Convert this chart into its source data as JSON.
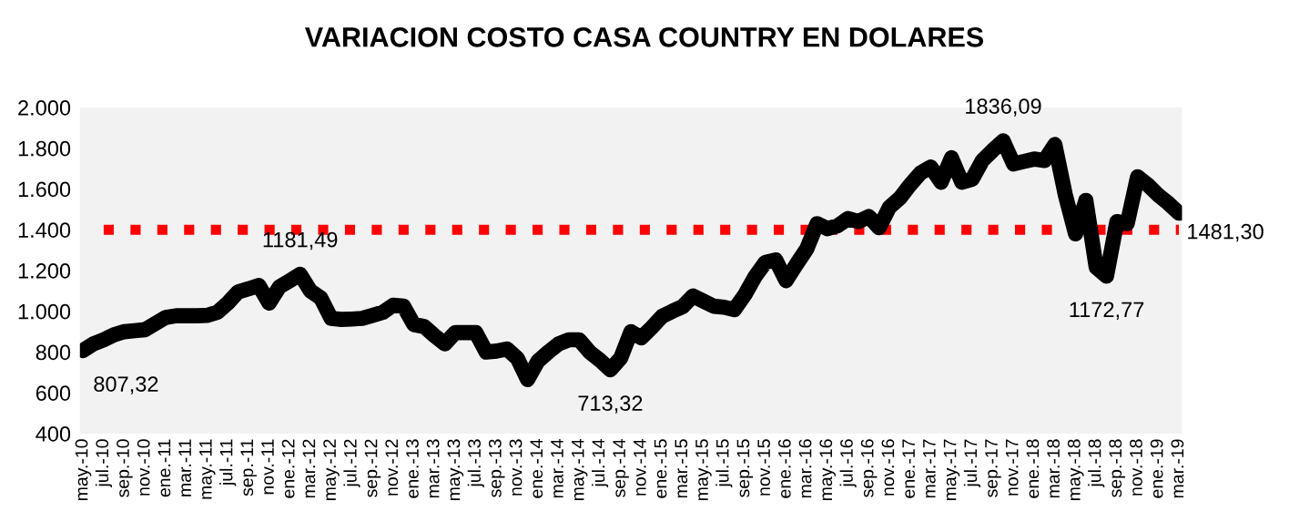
{
  "chart_data": {
    "type": "line",
    "title": "VARIACION COSTO CASA COUNTRY EN DOLARES",
    "categories": [
      "may.-10",
      null,
      "jul.-10",
      null,
      "sep.-10",
      null,
      "nov.-10",
      null,
      "ene.-11",
      null,
      "mar.-11",
      null,
      "may.-11",
      null,
      "jul.-11",
      null,
      "sep.-11",
      null,
      "nov.-11",
      null,
      "ene.-12",
      null,
      "mar.-12",
      null,
      "may.-12",
      null,
      "jul.-12",
      null,
      "sep.-12",
      null,
      "nov.-12",
      null,
      "ene.-13",
      null,
      "mar.-13",
      null,
      "may.-13",
      null,
      "jul.-13",
      null,
      "sep.-13",
      null,
      "nov.-13",
      null,
      "ene.-14",
      null,
      "mar.-14",
      null,
      "may.-14",
      null,
      "jul.-14",
      null,
      "sep.-14",
      null,
      "nov.-14",
      null,
      "ene.-15",
      null,
      "mar.-15",
      null,
      "may.-15",
      null,
      "jul.-15",
      null,
      "sep.-15",
      null,
      "nov.-15",
      null,
      "ene.-16",
      null,
      "mar.-16",
      null,
      "may.-16",
      null,
      "jul.-16",
      null,
      "sep.-16",
      null,
      "nov.-16",
      null,
      "ene.-17",
      null,
      "mar.-17",
      null,
      "may.-17",
      null,
      "jul.-17",
      null,
      "sep.-17",
      null,
      "nov.-17",
      null,
      "ene.-18",
      null,
      "mar.-18",
      null,
      "may.-18",
      null,
      "jul.-18",
      null,
      "sep.-18",
      null,
      "nov.-18",
      null,
      "ene.-19",
      null,
      "mar.-19"
    ],
    "series": [
      {
        "color": "#000000",
        "values": [
          807.32,
          840,
          860,
          885,
          900,
          905,
          910,
          940,
          970,
          978,
          978,
          978,
          980,
          995,
          1040,
          1095,
          1110,
          1127,
          1040,
          1120,
          1150,
          1181.49,
          1100,
          1065,
          965,
          960,
          962,
          965,
          980,
          995,
          1030,
          1025,
          935,
          925,
          880,
          840,
          895,
          895,
          895,
          800,
          805,
          815,
          770,
          665,
          755,
          800,
          840,
          860,
          860,
          800,
          760,
          713.32,
          770,
          900,
          870,
          920,
          975,
          1000,
          1023,
          1075,
          1050,
          1025,
          1020,
          1008,
          1080,
          1170,
          1240,
          1252,
          1150,
          1230,
          1306,
          1430,
          1405,
          1420,
          1455,
          1440,
          1465,
          1410,
          1510,
          1555,
          1620,
          1678,
          1708,
          1633,
          1753,
          1633,
          1648,
          1740,
          1790,
          1836.09,
          1723,
          1735,
          1747,
          1740,
          1818,
          1574,
          1380,
          1544,
          1216,
          1172.77,
          1440,
          1430,
          1660,
          1620,
          1570,
          1529,
          1481.3
        ],
        "value_labels": [
          "807,32",
          null,
          null,
          null,
          null,
          null,
          null,
          null,
          null,
          null,
          null,
          null,
          null,
          null,
          null,
          null,
          null,
          null,
          null,
          null,
          null,
          "1181,49",
          null,
          null,
          null,
          null,
          null,
          null,
          null,
          null,
          null,
          null,
          null,
          null,
          null,
          null,
          null,
          null,
          null,
          null,
          null,
          null,
          null,
          null,
          null,
          null,
          null,
          null,
          null,
          null,
          null,
          "713,32",
          null,
          null,
          null,
          null,
          null,
          null,
          null,
          null,
          null,
          null,
          null,
          null,
          null,
          null,
          null,
          null,
          null,
          null,
          null,
          null,
          null,
          null,
          null,
          null,
          null,
          null,
          null,
          null,
          null,
          null,
          null,
          null,
          null,
          null,
          null,
          null,
          null,
          "1836,09",
          null,
          null,
          null,
          null,
          null,
          null,
          null,
          null,
          null,
          "1172,77",
          null,
          null,
          null,
          null,
          null,
          null,
          "1481,30"
        ]
      }
    ],
    "ylim": [
      400,
      2000
    ],
    "yticks": [
      400,
      600,
      800,
      {
        "value": 1000,
        "label": "1.000"
      },
      {
        "value": 1200,
        "label": "1.200"
      },
      {
        "value": 1400,
        "label": "1.400"
      },
      {
        "value": 1600,
        "label": "1.600"
      },
      {
        "value": 1800,
        "label": "1.800"
      },
      {
        "value": 2000,
        "label": "2.000"
      }
    ],
    "ref_lines": [
      {
        "axis": "y",
        "value": 1400,
        "color": "#ff0000",
        "line_style": "dotted"
      }
    ],
    "grid": false,
    "legend": false,
    "line_style": "solid",
    "marker": "none"
  }
}
